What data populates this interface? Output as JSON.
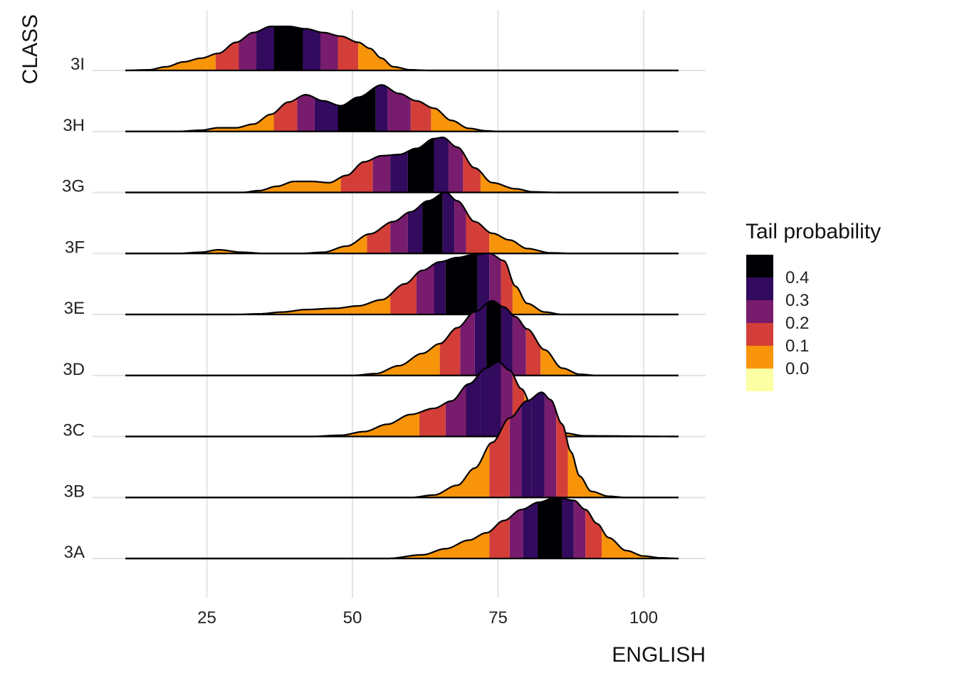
{
  "chart_data": {
    "type": "area",
    "subtype": "ridgeline density with tail-probability quantile bands",
    "xlabel": "ENGLISH",
    "ylabel": "CLASS",
    "x_ticks": [
      25,
      50,
      75,
      100
    ],
    "xlim": [
      11,
      106
    ],
    "categories": [
      "3A",
      "3B",
      "3C",
      "3D",
      "3E",
      "3F",
      "3G",
      "3H",
      "3I"
    ],
    "grid": true,
    "legend": {
      "title": "Tail probability",
      "position": "right",
      "labels": [
        "0.4",
        "0.3",
        "0.2",
        "0.1",
        "0.0"
      ],
      "colors": [
        "#000004",
        "#320A5E",
        "#781C6D",
        "#D33F38",
        "#F8940A",
        "#FCFFA4"
      ]
    },
    "series": [
      {
        "name": "3A",
        "cutpoints": [
          73.5,
          77,
          79.3,
          81.8,
          86,
          88,
          90,
          92.8
        ],
        "density": [
          [
            11,
            0
          ],
          [
            56,
            0
          ],
          [
            62,
            0.06
          ],
          [
            66,
            0.16
          ],
          [
            70,
            0.3
          ],
          [
            73,
            0.42
          ],
          [
            76,
            0.62
          ],
          [
            79,
            0.8
          ],
          [
            82,
            0.92
          ],
          [
            85,
            1.0
          ],
          [
            88,
            0.95
          ],
          [
            90,
            0.8
          ],
          [
            92,
            0.57
          ],
          [
            94,
            0.34
          ],
          [
            97,
            0.13
          ],
          [
            100,
            0.04
          ],
          [
            103,
            0.01
          ],
          [
            106,
            0
          ]
        ]
      },
      {
        "name": "3B",
        "cutpoints": [
          73.5,
          77,
          79,
          80.8,
          83,
          85,
          87
        ],
        "density": [
          [
            11,
            0
          ],
          [
            60,
            0
          ],
          [
            64,
            0.04
          ],
          [
            68,
            0.2
          ],
          [
            71,
            0.48
          ],
          [
            74,
            0.9
          ],
          [
            77,
            1.3
          ],
          [
            80,
            1.58
          ],
          [
            82.5,
            1.72
          ],
          [
            84,
            1.6
          ],
          [
            86,
            1.2
          ],
          [
            87.5,
            0.75
          ],
          [
            89,
            0.35
          ],
          [
            91,
            0.1
          ],
          [
            94,
            0.02
          ],
          [
            97,
            0
          ],
          [
            106,
            0
          ]
        ]
      },
      {
        "name": "3C",
        "cutpoints": [
          61.5,
          66,
          69.5,
          72,
          75.5,
          77.5,
          79.5
        ],
        "density": [
          [
            11,
            0
          ],
          [
            43,
            0
          ],
          [
            48,
            0.02
          ],
          [
            52,
            0.08
          ],
          [
            56,
            0.2
          ],
          [
            60,
            0.36
          ],
          [
            64,
            0.46
          ],
          [
            67,
            0.58
          ],
          [
            70,
            0.86
          ],
          [
            73,
            1.12
          ],
          [
            75,
            1.22
          ],
          [
            77,
            1.08
          ],
          [
            79,
            0.78
          ],
          [
            81,
            0.46
          ],
          [
            83,
            0.22
          ],
          [
            86,
            0.06
          ],
          [
            90,
            0.01
          ],
          [
            106,
            0
          ]
        ]
      },
      {
        "name": "3D",
        "cutpoints": [
          65,
          68.5,
          71,
          73,
          75.5,
          77.5,
          79.8,
          82.3
        ],
        "density": [
          [
            11,
            0
          ],
          [
            50,
            0
          ],
          [
            54,
            0.03
          ],
          [
            58,
            0.16
          ],
          [
            62,
            0.36
          ],
          [
            65,
            0.52
          ],
          [
            68,
            0.78
          ],
          [
            71,
            1.04
          ],
          [
            74,
            1.22
          ],
          [
            76,
            1.12
          ],
          [
            78,
            0.96
          ],
          [
            80,
            0.76
          ],
          [
            83,
            0.42
          ],
          [
            86,
            0.12
          ],
          [
            89,
            0.02
          ],
          [
            92,
            0
          ],
          [
            106,
            0
          ]
        ]
      },
      {
        "name": "3E",
        "cutpoints": [
          56.5,
          61,
          64,
          66,
          71.5,
          73.5,
          75.5,
          77.5
        ],
        "density": [
          [
            11,
            0
          ],
          [
            30,
            0
          ],
          [
            34,
            0.01
          ],
          [
            38,
            0.04
          ],
          [
            42,
            0.08
          ],
          [
            47,
            0.1
          ],
          [
            51,
            0.14
          ],
          [
            55,
            0.24
          ],
          [
            59,
            0.5
          ],
          [
            62,
            0.72
          ],
          [
            65,
            0.86
          ],
          [
            68,
            0.93
          ],
          [
            71,
            0.98
          ],
          [
            73.5,
            1.0
          ],
          [
            76,
            0.88
          ],
          [
            78,
            0.46
          ],
          [
            80,
            0.18
          ],
          [
            83,
            0.04
          ],
          [
            86,
            0
          ],
          [
            106,
            0
          ]
        ]
      },
      {
        "name": "3F",
        "cutpoints": [
          52.5,
          56.5,
          59.5,
          62,
          65.5,
          67.5,
          69.5,
          73.5
        ],
        "density": [
          [
            11,
            0
          ],
          [
            20,
            0
          ],
          [
            24,
            0.02
          ],
          [
            27,
            0.06
          ],
          [
            31,
            0.02
          ],
          [
            35,
            0
          ],
          [
            41,
            0
          ],
          [
            45,
            0.02
          ],
          [
            49,
            0.12
          ],
          [
            53,
            0.32
          ],
          [
            57,
            0.52
          ],
          [
            60,
            0.68
          ],
          [
            63,
            0.86
          ],
          [
            66,
            1.0
          ],
          [
            68,
            0.86
          ],
          [
            71,
            0.52
          ],
          [
            74,
            0.33
          ],
          [
            77,
            0.22
          ],
          [
            80,
            0.08
          ],
          [
            84,
            0.01
          ],
          [
            88,
            0
          ],
          [
            106,
            0
          ]
        ]
      },
      {
        "name": "3G",
        "cutpoints": [
          48,
          53.5,
          56.5,
          59.5,
          64,
          66.5,
          69,
          72
        ],
        "density": [
          [
            11,
            0
          ],
          [
            31,
            0
          ],
          [
            34,
            0.03
          ],
          [
            37,
            0.1
          ],
          [
            40,
            0.18
          ],
          [
            43,
            0.18
          ],
          [
            46,
            0.16
          ],
          [
            49,
            0.28
          ],
          [
            52,
            0.5
          ],
          [
            55,
            0.6
          ],
          [
            58,
            0.62
          ],
          [
            61,
            0.72
          ],
          [
            64,
            0.88
          ],
          [
            65.5,
            0.9
          ],
          [
            68,
            0.74
          ],
          [
            71,
            0.4
          ],
          [
            74,
            0.16
          ],
          [
            78,
            0.06
          ],
          [
            81,
            0.01
          ],
          [
            85,
            0
          ],
          [
            106,
            0
          ]
        ]
      },
      {
        "name": "3H",
        "cutpoints": [
          36.5,
          40.5,
          43.5,
          47.5,
          54,
          56,
          60,
          63.5
        ],
        "density": [
          [
            11,
            0
          ],
          [
            20,
            0
          ],
          [
            24,
            0.02
          ],
          [
            27,
            0.06
          ],
          [
            30,
            0.06
          ],
          [
            33,
            0.12
          ],
          [
            36,
            0.28
          ],
          [
            39,
            0.48
          ],
          [
            42,
            0.6
          ],
          [
            45,
            0.5
          ],
          [
            48,
            0.42
          ],
          [
            51,
            0.56
          ],
          [
            55,
            0.76
          ],
          [
            58,
            0.62
          ],
          [
            61,
            0.5
          ],
          [
            64,
            0.38
          ],
          [
            67,
            0.18
          ],
          [
            70,
            0.05
          ],
          [
            73,
            0.01
          ],
          [
            75,
            0
          ],
          [
            106,
            0
          ]
        ]
      },
      {
        "name": "3I",
        "cutpoints": [
          26.5,
          30.5,
          33.5,
          36.5,
          41.5,
          44.5,
          47.5,
          51
        ],
        "density": [
          [
            11,
            0
          ],
          [
            15,
            0.01
          ],
          [
            18,
            0.06
          ],
          [
            21,
            0.14
          ],
          [
            24,
            0.2
          ],
          [
            27,
            0.28
          ],
          [
            30,
            0.46
          ],
          [
            33,
            0.62
          ],
          [
            36,
            0.72
          ],
          [
            39,
            0.72
          ],
          [
            42,
            0.68
          ],
          [
            45,
            0.62
          ],
          [
            48,
            0.56
          ],
          [
            51,
            0.46
          ],
          [
            53,
            0.36
          ],
          [
            55,
            0.2
          ],
          [
            57,
            0.06
          ],
          [
            60,
            0.01
          ],
          [
            63,
            0
          ],
          [
            106,
            0
          ]
        ]
      }
    ]
  }
}
